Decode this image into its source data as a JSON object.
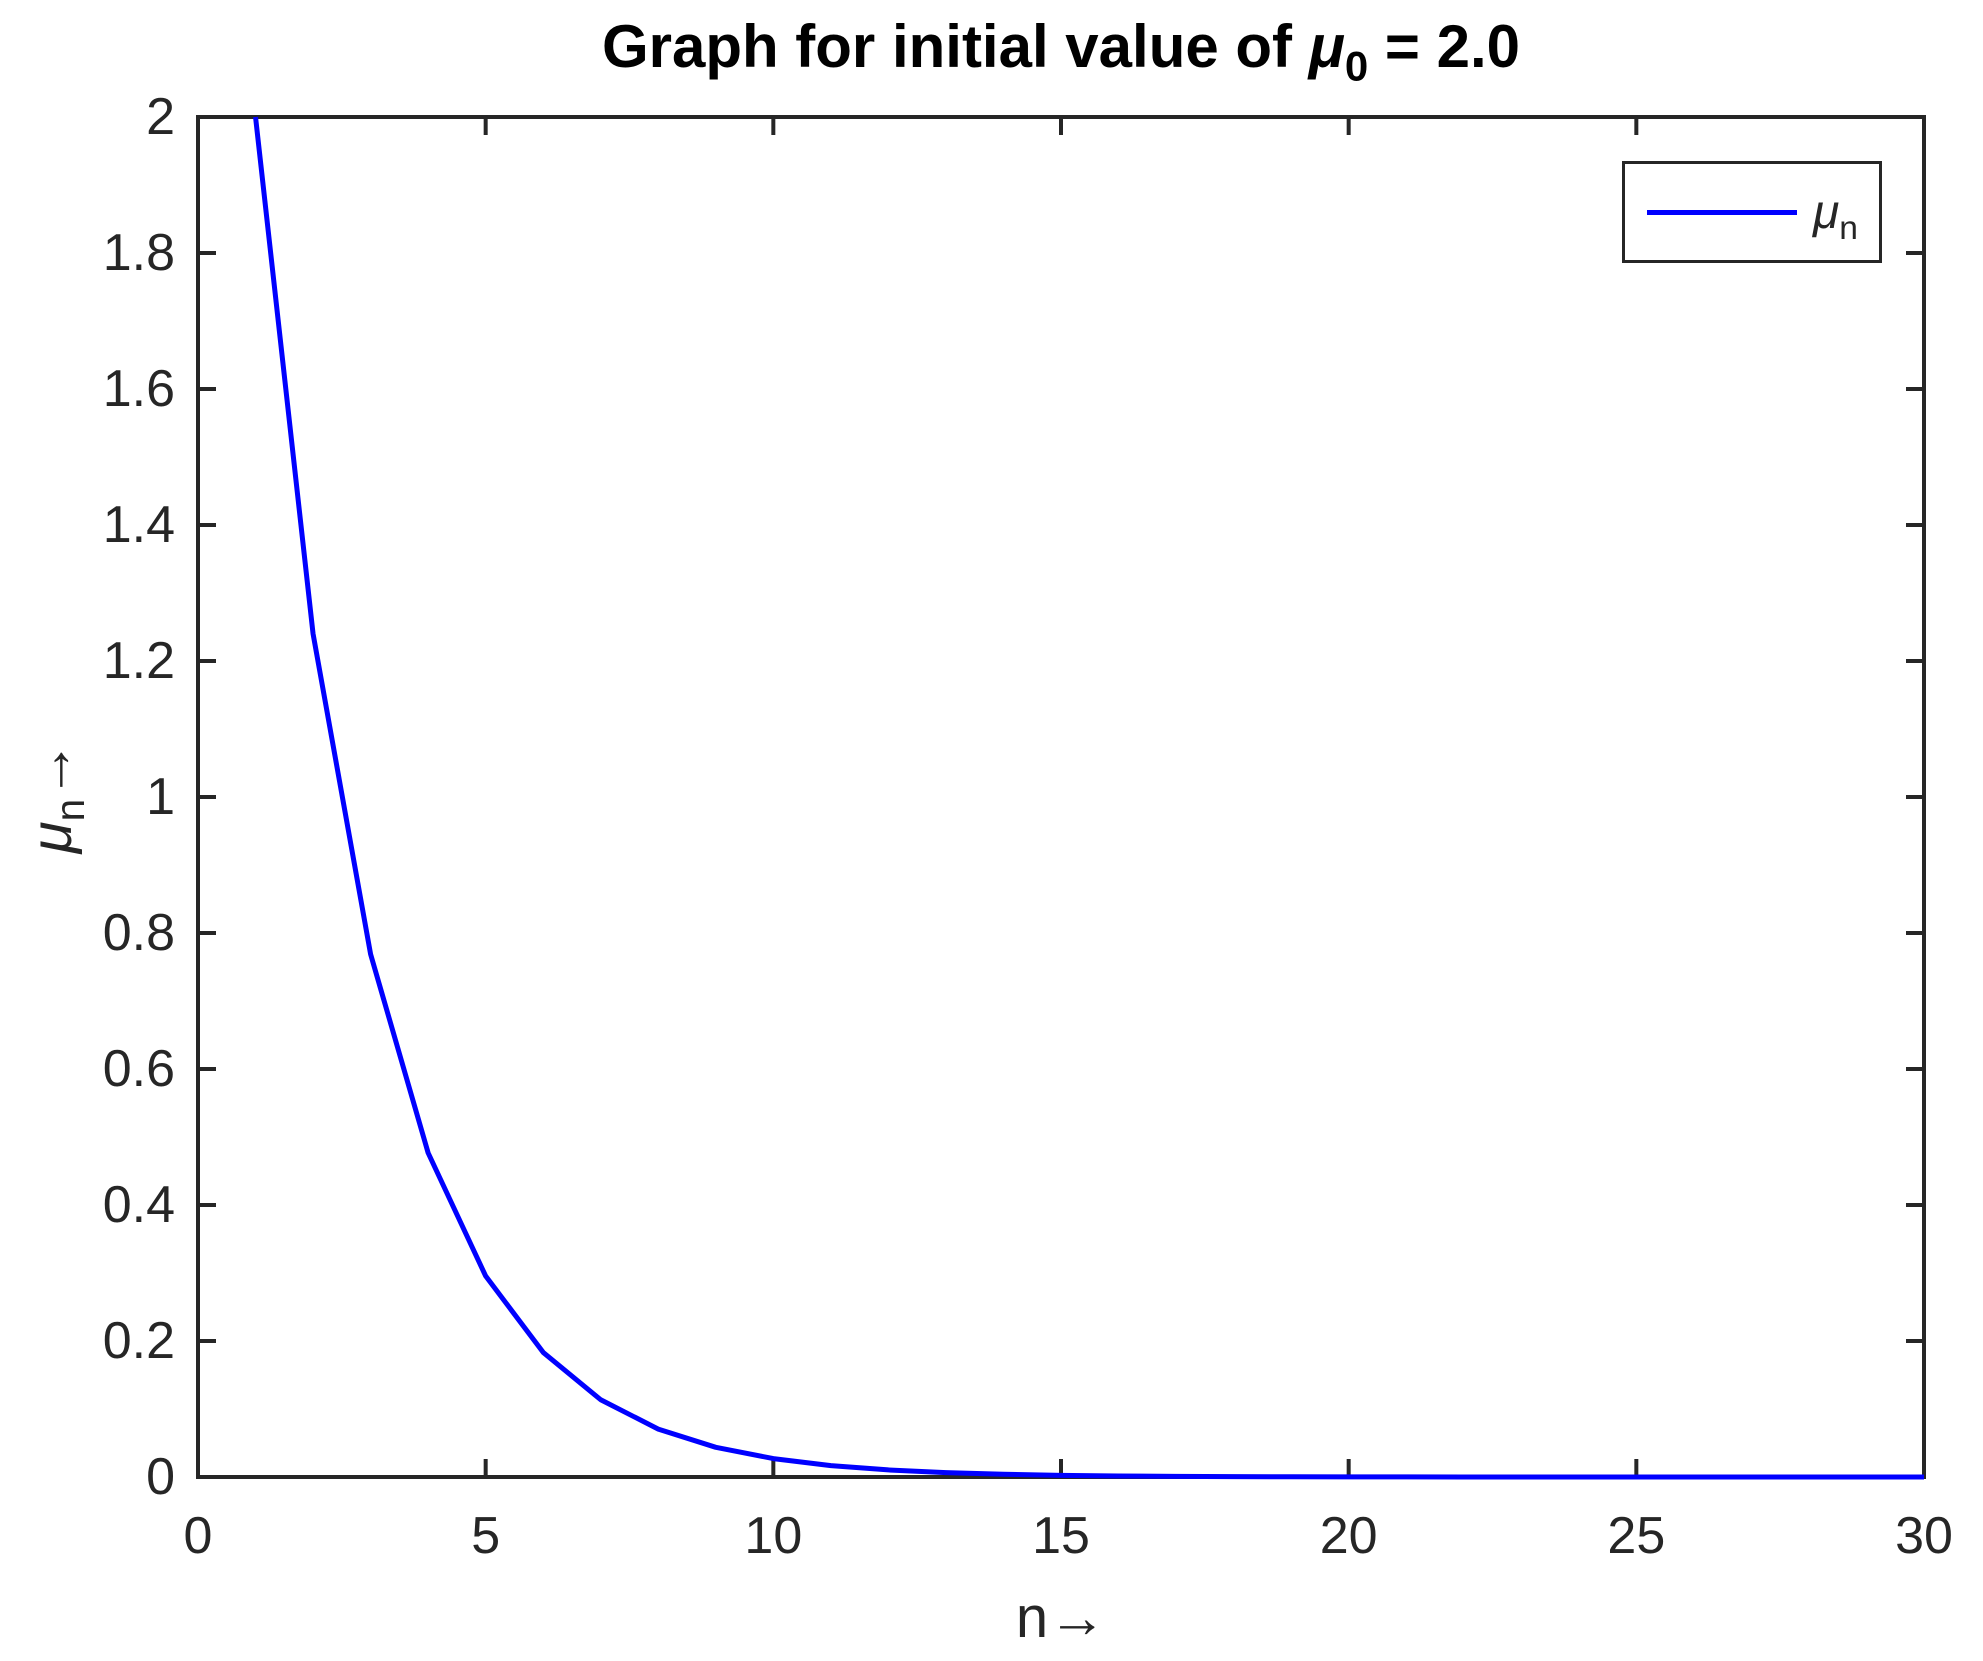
{
  "title": {
    "prefix": "Graph for initial value of ",
    "symbol": "μ",
    "subscript": "0",
    "suffix": " = 2.0"
  },
  "axes": {
    "x": {
      "label_main": "n",
      "label_arrow": "→",
      "min": 0,
      "max": 30,
      "ticks": [
        0,
        5,
        10,
        15,
        20,
        25,
        30
      ],
      "tick_labels": [
        "0",
        "5",
        "10",
        "15",
        "20",
        "25",
        "30"
      ]
    },
    "y": {
      "label_symbol": "μ",
      "label_subscript": "n",
      "label_arrow": "→",
      "min": 0,
      "max": 2,
      "ticks": [
        0,
        0.2,
        0.4,
        0.6,
        0.8,
        1,
        1.2,
        1.4,
        1.6,
        1.8,
        2
      ],
      "tick_labels": [
        "0",
        "0.2",
        "0.4",
        "0.6",
        "0.8",
        "1",
        "1.2",
        "1.4",
        "1.6",
        "1.8",
        "2"
      ]
    }
  },
  "legend": {
    "symbol": "μ",
    "subscript": "n"
  },
  "colors": {
    "line": "#0000ff",
    "axis": "#262626",
    "tick_text": "#262626",
    "title_text": "#000000",
    "background": "#ffffff"
  },
  "chart_data": {
    "type": "line",
    "title": "Graph for initial value of μ_0 = 2.0",
    "xlabel": "n→",
    "ylabel": "μ_n→",
    "xlim": [
      0,
      30
    ],
    "ylim": [
      0,
      2
    ],
    "grid": false,
    "legend_position": "northeast",
    "x": [
      1,
      2,
      3,
      4,
      5,
      6,
      7,
      8,
      9,
      10,
      11,
      12,
      13,
      14,
      15,
      16,
      17,
      18,
      19,
      20,
      21,
      22,
      23,
      24,
      25,
      26,
      27,
      28,
      29,
      30
    ],
    "series": [
      {
        "name": "μ_n",
        "color": "#0000ff",
        "values": [
          2.0,
          1.24,
          0.7688,
          0.47666,
          0.29553,
          0.18323,
          0.1136,
          0.07043,
          0.04367,
          0.02708,
          0.01679,
          0.01041,
          0.00645,
          0.004,
          0.00248,
          0.00154,
          0.00095,
          0.00059,
          0.00037,
          0.00023,
          0.00014,
          9e-05,
          6e-05,
          3e-05,
          2e-05,
          1e-05,
          1e-05,
          0.0,
          0.0,
          0.0
        ]
      }
    ]
  }
}
